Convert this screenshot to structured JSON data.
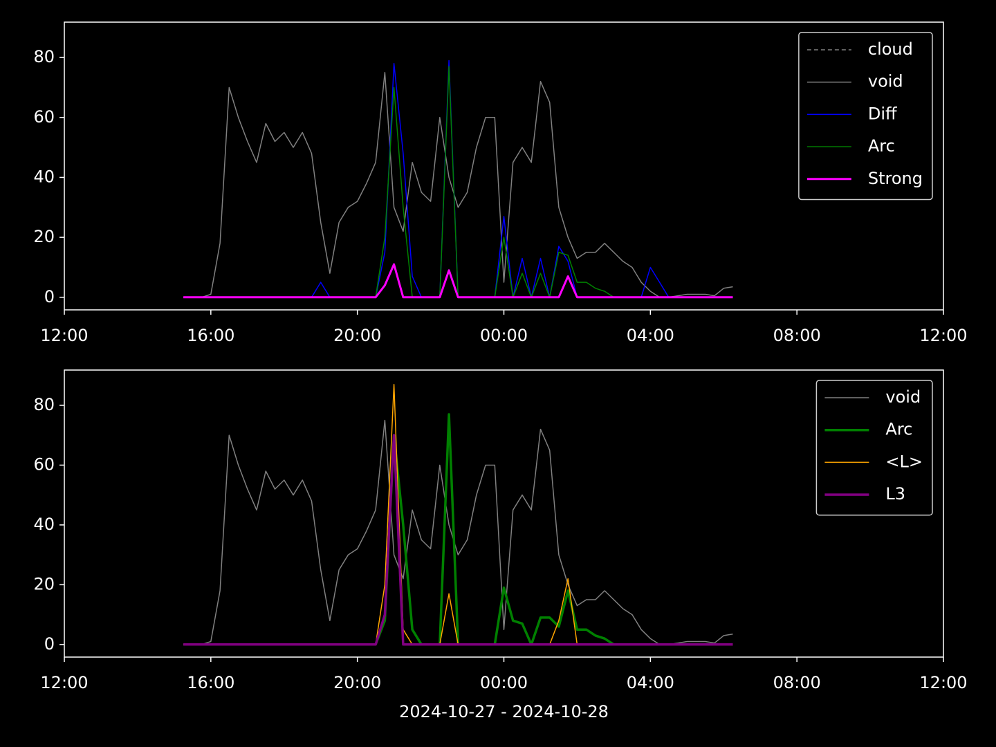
{
  "chart_data": [
    {
      "type": "line",
      "legend": "upper right",
      "x": [
        3.25,
        3.5,
        3.75,
        4.0,
        4.25,
        4.5,
        4.75,
        5.0,
        5.25,
        5.5,
        5.75,
        6.0,
        6.25,
        6.5,
        6.75,
        7.0,
        7.25,
        7.5,
        7.75,
        8.0,
        8.25,
        8.5,
        8.75,
        9.0,
        9.25,
        9.5,
        9.75,
        10.0,
        10.25,
        10.5,
        10.75,
        11.0,
        11.25,
        11.5,
        11.75,
        12.0,
        12.25,
        12.5,
        12.75,
        13.0,
        13.25,
        13.5,
        13.75,
        14.0,
        14.25,
        14.5,
        14.75,
        15.0,
        15.25,
        15.5,
        15.75,
        16.0,
        16.25,
        16.5,
        16.75,
        17.0,
        17.25,
        17.5,
        17.75,
        18.0,
        18.25
      ],
      "xlim": [
        0,
        24
      ],
      "xticks": [
        {
          "value": 0,
          "label": "12:00"
        },
        {
          "value": 4,
          "label": "16:00"
        },
        {
          "value": 8,
          "label": "20:00"
        },
        {
          "value": 12,
          "label": "00:00"
        },
        {
          "value": 16,
          "label": "04:00"
        },
        {
          "value": 20,
          "label": "08:00"
        },
        {
          "value": 24,
          "label": "12:00"
        }
      ],
      "ylim": [
        -4.2,
        91.8
      ],
      "yticks": [
        0,
        20,
        40,
        60,
        80
      ],
      "series": [
        {
          "name": "cloud",
          "color": "#808080",
          "linewidth": 1.5,
          "linestyle": "dashed",
          "values": [
            null,
            null,
            null,
            null,
            null,
            null,
            null,
            null,
            null,
            null,
            null,
            null,
            null,
            null,
            null,
            null,
            null,
            null,
            null,
            null,
            null,
            null,
            null,
            null,
            null,
            null,
            null,
            null,
            null,
            null,
            null,
            null,
            null,
            null,
            null,
            null,
            null,
            null,
            null,
            null,
            null,
            null,
            null,
            null,
            null,
            null,
            null,
            null,
            null,
            null,
            null,
            null,
            null,
            null,
            null,
            null,
            null,
            null,
            null,
            null,
            null
          ]
        },
        {
          "name": "void",
          "color": "#808080",
          "linewidth": 1.5,
          "values": [
            0,
            0,
            0,
            1,
            18,
            70,
            60,
            52,
            45,
            58,
            52,
            55,
            50,
            55,
            48,
            25,
            8,
            25,
            30,
            32,
            38,
            45,
            75,
            30,
            22,
            45,
            35,
            32,
            60,
            40,
            30,
            35,
            50,
            60,
            60,
            5,
            45,
            50,
            45,
            72,
            65,
            30,
            20,
            13,
            15,
            15,
            18,
            15,
            12,
            10,
            5,
            2,
            0,
            0,
            0.5,
            1,
            1,
            1,
            0.5,
            3,
            3.5
          ]
        },
        {
          "name": "Diff",
          "color": "#0000ff",
          "linewidth": 1.5,
          "values": [
            0,
            0,
            0,
            0,
            0,
            0,
            0,
            0,
            0,
            0,
            0,
            0,
            0,
            0,
            0,
            5,
            0,
            0,
            0,
            0,
            0,
            0,
            15,
            78,
            48,
            7,
            0,
            0,
            0,
            79,
            0,
            0,
            0,
            0,
            0,
            27,
            0,
            13,
            0,
            13,
            0,
            17,
            12,
            0,
            0,
            0,
            0,
            0,
            0,
            0,
            0,
            10,
            5,
            0,
            0,
            0,
            0,
            0,
            0,
            0,
            0
          ]
        },
        {
          "name": "Arc",
          "color": "#008000",
          "linewidth": 1.5,
          "values": [
            0,
            0,
            0,
            0,
            0,
            0,
            0,
            0,
            0,
            0,
            0,
            0,
            0,
            0,
            0,
            0,
            0,
            0,
            0,
            0,
            0,
            0,
            20,
            70,
            30,
            0,
            0,
            0,
            0,
            77,
            0,
            0,
            0,
            0,
            0,
            20,
            0,
            8,
            0,
            8,
            0,
            15,
            14,
            5,
            5,
            3,
            2,
            0,
            0,
            0,
            0,
            0,
            0,
            0,
            0,
            0,
            0,
            0,
            0,
            0,
            0
          ]
        },
        {
          "name": "Strong",
          "color": "#ff00ff",
          "linewidth": 3,
          "values": [
            0,
            0,
            0,
            0,
            0,
            0,
            0,
            0,
            0,
            0,
            0,
            0,
            0,
            0,
            0,
            0,
            0,
            0,
            0,
            0,
            0,
            0,
            4,
            11,
            0,
            0,
            0,
            0,
            0,
            9,
            0,
            0,
            0,
            0,
            0,
            0,
            0,
            0,
            0,
            0,
            0,
            0,
            7,
            0,
            0,
            0,
            0,
            0,
            0,
            0,
            0,
            0,
            0,
            0,
            0,
            0,
            0,
            0,
            0,
            0,
            0
          ]
        }
      ]
    },
    {
      "type": "line",
      "legend": "upper right",
      "xlabel": "2024-10-27 - 2024-10-28",
      "x": [
        3.25,
        3.5,
        3.75,
        4.0,
        4.25,
        4.5,
        4.75,
        5.0,
        5.25,
        5.5,
        5.75,
        6.0,
        6.25,
        6.5,
        6.75,
        7.0,
        7.25,
        7.5,
        7.75,
        8.0,
        8.25,
        8.5,
        8.75,
        9.0,
        9.25,
        9.5,
        9.75,
        10.0,
        10.25,
        10.5,
        10.75,
        11.0,
        11.25,
        11.5,
        11.75,
        12.0,
        12.25,
        12.5,
        12.75,
        13.0,
        13.25,
        13.5,
        13.75,
        14.0,
        14.25,
        14.5,
        14.75,
        15.0,
        15.25,
        15.5,
        15.75,
        16.0,
        16.25,
        16.5,
        16.75,
        17.0,
        17.25,
        17.5,
        17.75,
        18.0,
        18.25
      ],
      "xlim": [
        0,
        24
      ],
      "xticks": [
        {
          "value": 0,
          "label": "12:00"
        },
        {
          "value": 4,
          "label": "16:00"
        },
        {
          "value": 8,
          "label": "20:00"
        },
        {
          "value": 12,
          "label": "00:00"
        },
        {
          "value": 16,
          "label": "04:00"
        },
        {
          "value": 20,
          "label": "08:00"
        },
        {
          "value": 24,
          "label": "12:00"
        }
      ],
      "ylim": [
        -4.2,
        91.8
      ],
      "yticks": [
        0,
        20,
        40,
        60,
        80
      ],
      "series": [
        {
          "name": "void",
          "color": "#808080",
          "linewidth": 1.5,
          "values": [
            0,
            0,
            0,
            1,
            18,
            70,
            60,
            52,
            45,
            58,
            52,
            55,
            50,
            55,
            48,
            25,
            8,
            25,
            30,
            32,
            38,
            45,
            75,
            30,
            22,
            45,
            35,
            32,
            60,
            40,
            30,
            35,
            50,
            60,
            60,
            5,
            45,
            50,
            45,
            72,
            65,
            30,
            20,
            13,
            15,
            15,
            18,
            15,
            12,
            10,
            5,
            2,
            0,
            0,
            0.5,
            1,
            1,
            1,
            0.5,
            3,
            3.5
          ]
        },
        {
          "name": "Arc",
          "color": "#008000",
          "linewidth": 3.5,
          "values": [
            0,
            0,
            0,
            0,
            0,
            0,
            0,
            0,
            0,
            0,
            0,
            0,
            0,
            0,
            0,
            0,
            0,
            0,
            0,
            0,
            0,
            0,
            8,
            70,
            40,
            5,
            0,
            0,
            0,
            77,
            0,
            0,
            0,
            0,
            0,
            19,
            8,
            7,
            0,
            9,
            9,
            6,
            18,
            5,
            5,
            3,
            2,
            0,
            0,
            0,
            0,
            0,
            0,
            0,
            0,
            0,
            0,
            0,
            0,
            0,
            0
          ]
        },
        {
          "name": "<L>",
          "color": "#ffa500",
          "linewidth": 1.5,
          "values": [
            0,
            0,
            0,
            0,
            0,
            0,
            0,
            0,
            0,
            0,
            0,
            0,
            0,
            0,
            0,
            0,
            0,
            0,
            0,
            0,
            0,
            0,
            20,
            87,
            5,
            0,
            0,
            0,
            0,
            17,
            0,
            0,
            0,
            0,
            0,
            0,
            0,
            0,
            0,
            0,
            0,
            8,
            22,
            0,
            0,
            0,
            0,
            0,
            0,
            0,
            0,
            0,
            0,
            0,
            0,
            0,
            0,
            0,
            0,
            0,
            0
          ]
        },
        {
          "name": "L3",
          "color": "#800080",
          "linewidth": 3.5,
          "values": [
            0,
            0,
            0,
            0,
            0,
            0,
            0,
            0,
            0,
            0,
            0,
            0,
            0,
            0,
            0,
            0,
            0,
            0,
            0,
            0,
            0,
            0,
            10,
            70,
            0,
            0,
            0,
            0,
            0,
            0,
            0,
            0,
            0,
            0,
            0,
            0,
            0,
            0,
            0,
            0,
            0,
            0,
            0,
            0,
            0,
            0,
            0,
            0,
            0,
            0,
            0,
            0,
            0,
            0,
            0,
            0,
            0,
            0,
            0,
            0,
            0
          ]
        }
      ]
    }
  ]
}
